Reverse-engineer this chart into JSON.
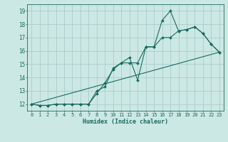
{
  "title": "",
  "xlabel": "Humidex (Indice chaleur)",
  "ylabel": "",
  "background_color": "#cce8e4",
  "grid_color": "#aacccc",
  "line_color": "#1a6b60",
  "xlim": [
    -0.5,
    23.5
  ],
  "ylim": [
    11.5,
    19.5
  ],
  "xticks": [
    0,
    1,
    2,
    3,
    4,
    5,
    6,
    7,
    8,
    9,
    10,
    11,
    12,
    13,
    14,
    15,
    16,
    17,
    18,
    19,
    20,
    21,
    22,
    23
  ],
  "yticks": [
    12,
    13,
    14,
    15,
    16,
    17,
    18,
    19
  ],
  "line1_x": [
    0,
    1,
    2,
    3,
    4,
    5,
    6,
    7,
    8,
    9,
    10,
    11,
    12,
    13,
    14,
    15,
    16,
    17,
    18,
    19,
    20,
    21,
    22,
    23
  ],
  "line1_y": [
    12.0,
    11.9,
    11.9,
    12.0,
    12.0,
    12.0,
    12.0,
    12.0,
    13.0,
    13.3,
    14.7,
    15.1,
    15.1,
    15.1,
    16.3,
    16.3,
    18.3,
    19.0,
    17.5,
    17.6,
    17.8,
    17.3,
    16.5,
    15.9
  ],
  "line2_x": [
    0,
    1,
    2,
    3,
    4,
    5,
    6,
    7,
    8,
    9,
    10,
    11,
    12,
    13,
    14,
    15,
    16,
    17,
    18,
    19,
    20,
    21,
    22,
    23
  ],
  "line2_y": [
    12.0,
    11.9,
    11.9,
    12.0,
    12.0,
    12.0,
    12.0,
    12.0,
    12.8,
    13.6,
    14.6,
    15.1,
    15.5,
    13.8,
    16.3,
    16.3,
    17.0,
    17.0,
    17.5,
    17.6,
    17.8,
    17.3,
    16.5,
    15.9
  ],
  "line3_x": [
    0,
    23
  ],
  "line3_y": [
    12.0,
    15.9
  ],
  "tick_fontsize": 5,
  "xlabel_fontsize": 6,
  "marker_size": 2.0
}
